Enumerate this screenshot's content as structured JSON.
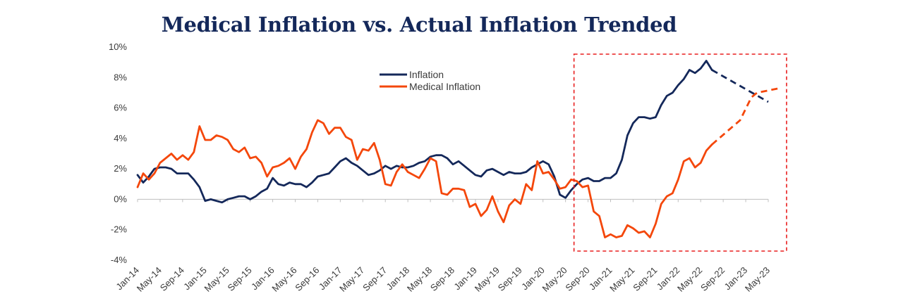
{
  "chart_data": {
    "type": "line",
    "title": "Medical Inflation vs. Actual Inflation Trended",
    "xlabel": "",
    "ylabel": "",
    "ylim": [
      -4,
      10
    ],
    "yticks": [
      -4,
      -2,
      0,
      2,
      4,
      6,
      8,
      10
    ],
    "ytick_labels": [
      "-4%",
      "-2%",
      "0%",
      "2%",
      "4%",
      "6%",
      "8%",
      "10%"
    ],
    "x_start": "Jan-14",
    "x_end": "May-23",
    "xtick_labels": [
      "Jan-14",
      "May-14",
      "Sep-14",
      "Jan-15",
      "May-15",
      "Sep-15",
      "Jan-16",
      "May-16",
      "Sep-16",
      "Jan-17",
      "May-17",
      "Sep-17",
      "Jan-18",
      "May-18",
      "Sep-18",
      "Jan-19",
      "May-19",
      "Sep-19",
      "Jan-20",
      "May-20",
      "Sep-20",
      "Jan-21",
      "May-21",
      "Sep-21",
      "Jan-22",
      "May-22",
      "Sep-22",
      "Jan-23",
      "May-23"
    ],
    "legend": {
      "position": "top-center",
      "entries": [
        "Inflation",
        "Medical Inflation"
      ]
    },
    "highlight_box": {
      "from": "May-20",
      "to": "Jul-23",
      "color": "#e81e1e",
      "style": "dashed"
    },
    "series": [
      {
        "name": "Inflation",
        "color": "#14285a",
        "solid": [
          [
            "Jan-14",
            1.6
          ],
          [
            "Feb-14",
            1.1
          ],
          [
            "Mar-14",
            1.5
          ],
          [
            "Apr-14",
            2.0
          ],
          [
            "May-14",
            2.1
          ],
          [
            "Jun-14",
            2.1
          ],
          [
            "Jul-14",
            2.0
          ],
          [
            "Aug-14",
            1.7
          ],
          [
            "Sep-14",
            1.7
          ],
          [
            "Oct-14",
            1.7
          ],
          [
            "Nov-14",
            1.3
          ],
          [
            "Dec-14",
            0.8
          ],
          [
            "Jan-15",
            -0.1
          ],
          [
            "Feb-15",
            0.0
          ],
          [
            "Mar-15",
            -0.1
          ],
          [
            "Apr-15",
            -0.2
          ],
          [
            "May-15",
            0.0
          ],
          [
            "Jun-15",
            0.1
          ],
          [
            "Jul-15",
            0.2
          ],
          [
            "Aug-15",
            0.2
          ],
          [
            "Sep-15",
            0.0
          ],
          [
            "Oct-15",
            0.2
          ],
          [
            "Nov-15",
            0.5
          ],
          [
            "Dec-15",
            0.7
          ],
          [
            "Jan-16",
            1.4
          ],
          [
            "Feb-16",
            1.0
          ],
          [
            "Mar-16",
            0.9
          ],
          [
            "Apr-16",
            1.1
          ],
          [
            "May-16",
            1.0
          ],
          [
            "Jun-16",
            1.0
          ],
          [
            "Jul-16",
            0.8
          ],
          [
            "Aug-16",
            1.1
          ],
          [
            "Sep-16",
            1.5
          ],
          [
            "Oct-16",
            1.6
          ],
          [
            "Nov-16",
            1.7
          ],
          [
            "Dec-16",
            2.1
          ],
          [
            "Jan-17",
            2.5
          ],
          [
            "Feb-17",
            2.7
          ],
          [
            "Mar-17",
            2.4
          ],
          [
            "Apr-17",
            2.2
          ],
          [
            "May-17",
            1.9
          ],
          [
            "Jun-17",
            1.6
          ],
          [
            "Jul-17",
            1.7
          ],
          [
            "Aug-17",
            1.9
          ],
          [
            "Sep-17",
            2.2
          ],
          [
            "Oct-17",
            2.0
          ],
          [
            "Nov-17",
            2.2
          ],
          [
            "Dec-17",
            2.1
          ],
          [
            "Jan-18",
            2.1
          ],
          [
            "Feb-18",
            2.2
          ],
          [
            "Mar-18",
            2.4
          ],
          [
            "Apr-18",
            2.5
          ],
          [
            "May-18",
            2.8
          ],
          [
            "Jun-18",
            2.9
          ],
          [
            "Jul-18",
            2.9
          ],
          [
            "Aug-18",
            2.7
          ],
          [
            "Sep-18",
            2.3
          ],
          [
            "Oct-18",
            2.5
          ],
          [
            "Nov-18",
            2.2
          ],
          [
            "Dec-18",
            1.9
          ],
          [
            "Jan-19",
            1.6
          ],
          [
            "Feb-19",
            1.5
          ],
          [
            "Mar-19",
            1.9
          ],
          [
            "Apr-19",
            2.0
          ],
          [
            "May-19",
            1.8
          ],
          [
            "Jun-19",
            1.6
          ],
          [
            "Jul-19",
            1.8
          ],
          [
            "Aug-19",
            1.7
          ],
          [
            "Sep-19",
            1.7
          ],
          [
            "Oct-19",
            1.8
          ],
          [
            "Nov-19",
            2.1
          ],
          [
            "Dec-19",
            2.3
          ],
          [
            "Jan-20",
            2.5
          ],
          [
            "Feb-20",
            2.3
          ],
          [
            "Mar-20",
            1.5
          ],
          [
            "Apr-20",
            0.3
          ],
          [
            "May-20",
            0.1
          ],
          [
            "Jun-20",
            0.6
          ],
          [
            "Jul-20",
            1.0
          ],
          [
            "Aug-20",
            1.3
          ],
          [
            "Sep-20",
            1.4
          ],
          [
            "Oct-20",
            1.2
          ],
          [
            "Nov-20",
            1.2
          ],
          [
            "Dec-20",
            1.4
          ],
          [
            "Jan-21",
            1.4
          ],
          [
            "Feb-21",
            1.7
          ],
          [
            "Mar-21",
            2.6
          ],
          [
            "Apr-21",
            4.2
          ],
          [
            "May-21",
            5.0
          ],
          [
            "Jun-21",
            5.4
          ],
          [
            "Jul-21",
            5.4
          ],
          [
            "Aug-21",
            5.3
          ],
          [
            "Sep-21",
            5.4
          ],
          [
            "Oct-21",
            6.2
          ],
          [
            "Nov-21",
            6.8
          ],
          [
            "Dec-21",
            7.0
          ],
          [
            "Jan-22",
            7.5
          ],
          [
            "Feb-22",
            7.9
          ],
          [
            "Mar-22",
            8.5
          ],
          [
            "Apr-22",
            8.3
          ],
          [
            "May-22",
            8.6
          ],
          [
            "Jun-22",
            9.1
          ],
          [
            "Jul-22",
            8.5
          ]
        ],
        "projected": [
          [
            "Jul-22",
            8.5
          ],
          [
            "May-23",
            6.4
          ]
        ]
      },
      {
        "name": "Medical Inflation",
        "color": "#f4470b",
        "solid": [
          [
            "Jan-14",
            0.8
          ],
          [
            "Feb-14",
            1.7
          ],
          [
            "Mar-14",
            1.3
          ],
          [
            "Apr-14",
            1.7
          ],
          [
            "May-14",
            2.4
          ],
          [
            "Jun-14",
            2.7
          ],
          [
            "Jul-14",
            3.0
          ],
          [
            "Aug-14",
            2.6
          ],
          [
            "Sep-14",
            2.9
          ],
          [
            "Oct-14",
            2.6
          ],
          [
            "Nov-14",
            3.1
          ],
          [
            "Dec-14",
            4.8
          ],
          [
            "Jan-15",
            3.9
          ],
          [
            "Feb-15",
            3.9
          ],
          [
            "Mar-15",
            4.2
          ],
          [
            "Apr-15",
            4.1
          ],
          [
            "May-15",
            3.9
          ],
          [
            "Jun-15",
            3.3
          ],
          [
            "Jul-15",
            3.1
          ],
          [
            "Aug-15",
            3.4
          ],
          [
            "Sep-15",
            2.7
          ],
          [
            "Oct-15",
            2.8
          ],
          [
            "Nov-15",
            2.4
          ],
          [
            "Dec-15",
            1.5
          ],
          [
            "Jan-16",
            2.1
          ],
          [
            "Feb-16",
            2.2
          ],
          [
            "Mar-16",
            2.4
          ],
          [
            "Apr-16",
            2.7
          ],
          [
            "May-16",
            2.0
          ],
          [
            "Jun-16",
            2.8
          ],
          [
            "Jul-16",
            3.3
          ],
          [
            "Aug-16",
            4.4
          ],
          [
            "Sep-16",
            5.2
          ],
          [
            "Oct-16",
            5.0
          ],
          [
            "Nov-16",
            4.3
          ],
          [
            "Dec-16",
            4.7
          ],
          [
            "Jan-17",
            4.7
          ],
          [
            "Feb-17",
            4.1
          ],
          [
            "Mar-17",
            3.9
          ],
          [
            "Apr-17",
            2.6
          ],
          [
            "May-17",
            3.3
          ],
          [
            "Jun-17",
            3.2
          ],
          [
            "Jul-17",
            3.7
          ],
          [
            "Aug-17",
            2.6
          ],
          [
            "Sep-17",
            1.0
          ],
          [
            "Oct-17",
            0.9
          ],
          [
            "Nov-17",
            1.8
          ],
          [
            "Dec-17",
            2.3
          ],
          [
            "Jan-18",
            1.8
          ],
          [
            "Feb-18",
            1.6
          ],
          [
            "Mar-18",
            1.4
          ],
          [
            "Apr-18",
            2.0
          ],
          [
            "May-18",
            2.7
          ],
          [
            "Jun-18",
            2.5
          ],
          [
            "Jul-18",
            0.4
          ],
          [
            "Aug-18",
            0.3
          ],
          [
            "Sep-18",
            0.7
          ],
          [
            "Oct-18",
            0.7
          ],
          [
            "Nov-18",
            0.6
          ],
          [
            "Dec-18",
            -0.5
          ],
          [
            "Jan-19",
            -0.3
          ],
          [
            "Feb-19",
            -1.1
          ],
          [
            "Mar-19",
            -0.7
          ],
          [
            "Apr-19",
            0.2
          ],
          [
            "May-19",
            -0.8
          ],
          [
            "Jun-19",
            -1.5
          ],
          [
            "Jul-19",
            -0.4
          ],
          [
            "Aug-19",
            0.0
          ],
          [
            "Sep-19",
            -0.3
          ],
          [
            "Oct-19",
            1.0
          ],
          [
            "Nov-19",
            0.6
          ],
          [
            "Dec-19",
            2.5
          ],
          [
            "Jan-20",
            1.7
          ],
          [
            "Feb-20",
            1.8
          ],
          [
            "Mar-20",
            1.3
          ],
          [
            "Apr-20",
            0.7
          ],
          [
            "May-20",
            0.8
          ],
          [
            "Jun-20",
            1.3
          ],
          [
            "Jul-20",
            1.2
          ],
          [
            "Aug-20",
            0.8
          ],
          [
            "Sep-20",
            0.9
          ],
          [
            "Oct-20",
            -0.8
          ],
          [
            "Nov-20",
            -1.1
          ],
          [
            "Dec-20",
            -2.5
          ],
          [
            "Jan-21",
            -2.3
          ],
          [
            "Feb-21",
            -2.5
          ],
          [
            "Mar-21",
            -2.4
          ],
          [
            "Apr-21",
            -1.7
          ],
          [
            "May-21",
            -1.9
          ],
          [
            "Jun-21",
            -2.2
          ],
          [
            "Jul-21",
            -2.1
          ],
          [
            "Aug-21",
            -2.5
          ],
          [
            "Sep-21",
            -1.6
          ],
          [
            "Oct-21",
            -0.3
          ],
          [
            "Nov-21",
            0.2
          ],
          [
            "Dec-21",
            0.4
          ],
          [
            "Jan-22",
            1.3
          ],
          [
            "Feb-22",
            2.5
          ],
          [
            "Mar-22",
            2.7
          ],
          [
            "Apr-22",
            2.1
          ],
          [
            "May-22",
            2.4
          ],
          [
            "Jun-22",
            3.2
          ],
          [
            "Jul-22",
            3.6
          ]
        ],
        "projected": [
          [
            "Jul-22",
            3.6
          ],
          [
            "Dec-22",
            5.2
          ],
          [
            "Feb-23",
            6.7
          ],
          [
            "Mar-23",
            7.0
          ],
          [
            "Jul-23",
            7.3
          ]
        ]
      }
    ]
  }
}
